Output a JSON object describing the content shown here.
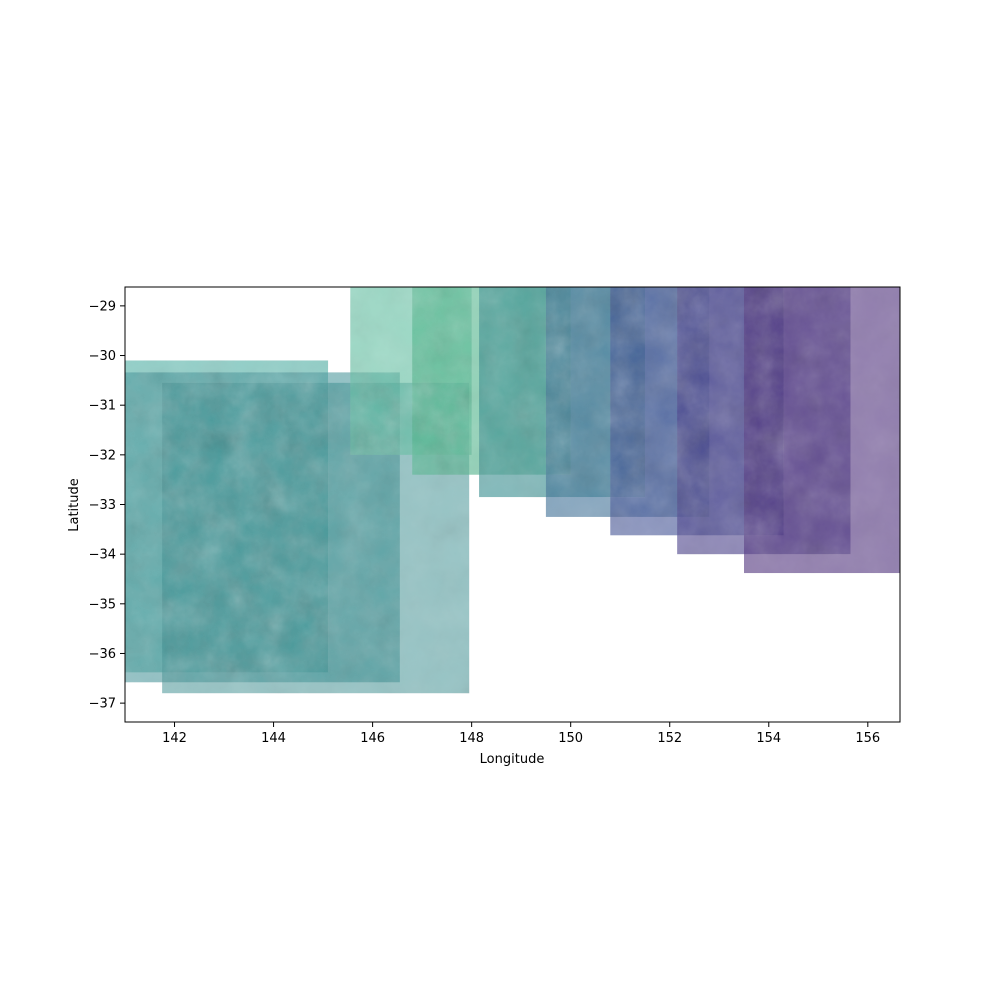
{
  "chart_data": {
    "type": "heatmap",
    "title": "",
    "xlabel": "Longitude",
    "ylabel": "Latitude",
    "xlim": [
      141.0,
      156.65
    ],
    "ylim": [
      -37.38,
      -28.62
    ],
    "xticks": [
      142,
      144,
      146,
      148,
      150,
      152,
      154,
      156
    ],
    "yticks": [
      -29,
      -30,
      -31,
      -32,
      -33,
      -34,
      -35,
      -36,
      -37
    ],
    "xtick_labels": [
      "142",
      "144",
      "146",
      "148",
      "150",
      "152",
      "154",
      "156"
    ],
    "ytick_labels": [
      "−29",
      "−30",
      "−31",
      "−32",
      "−33",
      "−34",
      "−35",
      "−36",
      "−37"
    ],
    "grid": false,
    "colormap": "viridis",
    "tiles": [
      {
        "lon": [
          141.0,
          145.1
        ],
        "lat": [
          -36.38,
          -30.1
        ],
        "color": "#3aa89a",
        "opacity": 0.55
      },
      {
        "lon": [
          141.0,
          146.55
        ],
        "lat": [
          -36.58,
          -30.34
        ],
        "color": "#3a8f95",
        "opacity": 0.55
      },
      {
        "lon": [
          141.75,
          147.95
        ],
        "lat": [
          -36.8,
          -30.55
        ],
        "color": "#2f8a8c",
        "opacity": 0.5
      },
      {
        "lon": [
          145.55,
          148.0
        ],
        "lat": [
          -32.0,
          -28.62
        ],
        "color": "#5cc0a0",
        "opacity": 0.6
      },
      {
        "lon": [
          146.8,
          150.0
        ],
        "lat": [
          -32.4,
          -28.62
        ],
        "color": "#4bb58a",
        "opacity": 0.6
      },
      {
        "lon": [
          148.15,
          151.5
        ],
        "lat": [
          -32.85,
          -28.62
        ],
        "color": "#2f8a8c",
        "opacity": 0.6
      },
      {
        "lon": [
          149.5,
          152.8
        ],
        "lat": [
          -33.25,
          -28.62
        ],
        "color": "#3b6e96",
        "opacity": 0.6
      },
      {
        "lon": [
          150.8,
          154.3
        ],
        "lat": [
          -33.62,
          -28.62
        ],
        "color": "#3e4f94",
        "opacity": 0.6
      },
      {
        "lon": [
          152.15,
          155.65
        ],
        "lat": [
          -34.0,
          -28.62
        ],
        "color": "#443a88",
        "opacity": 0.6
      },
      {
        "lon": [
          153.5,
          156.65
        ],
        "lat": [
          -34.38,
          -28.62
        ],
        "color": "#4a2a7a",
        "opacity": 0.6
      }
    ],
    "colorbar": false,
    "legend": "none"
  }
}
